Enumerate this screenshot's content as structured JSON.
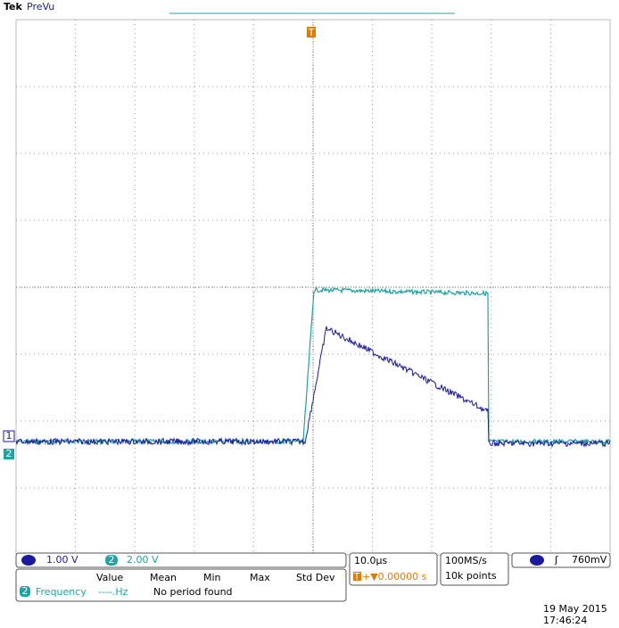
{
  "header": {
    "brand": "Tek",
    "mode": "PreVu"
  },
  "markers": {
    "ch1": "1",
    "ch2": "2",
    "trigger": "T"
  },
  "channels": [
    {
      "label": "1",
      "scale": "1.00 V"
    },
    {
      "label": "2",
      "scale": "2.00 V"
    }
  ],
  "timebase": {
    "scale": "10.0µs",
    "delay_icon": "T",
    "delay": "+▼0.00000 s"
  },
  "acquisition": {
    "rate": "100MS/s",
    "length": "10k points"
  },
  "trigger": {
    "slope": "ʃ",
    "level": "760mV"
  },
  "measurements": {
    "columns": [
      "Value",
      "Mean",
      "Min",
      "Max",
      "Std Dev"
    ],
    "rows": [
      {
        "source": "2",
        "name": "Frequency",
        "value": "----.Hz",
        "status": "No period found"
      }
    ]
  },
  "timestamp": {
    "date": "19 May 2015",
    "time": "17:46:24"
  }
}
